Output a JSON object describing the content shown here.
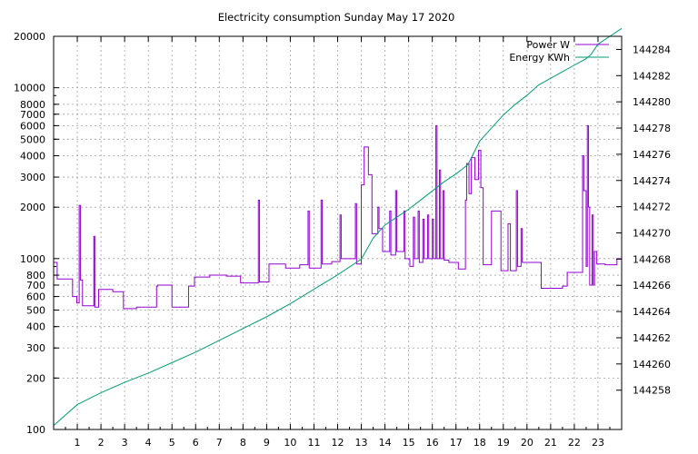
{
  "chart_data": {
    "type": "line",
    "title": "Electricity consumption Sunday May 17 2020",
    "x_ticks": [
      "1",
      "2",
      "3",
      "4",
      "5",
      "6",
      "7",
      "8",
      "9",
      "10",
      "11",
      "12",
      "13",
      "14",
      "15",
      "16",
      "17",
      "18",
      "19",
      "20",
      "21",
      "22",
      "23"
    ],
    "xlim": [
      0,
      24
    ],
    "y_left": {
      "scale": "log",
      "ylim": [
        100,
        20000
      ],
      "ticks": [
        "100",
        "200",
        "300",
        "400",
        "500",
        "600",
        "700",
        "800",
        "1000",
        "2000",
        "3000",
        "4000",
        "5000",
        "6000",
        "7000",
        "8000",
        "10000",
        "20000"
      ]
    },
    "y_right": {
      "ylim": [
        144255,
        144285
      ],
      "ticks": [
        "144258",
        "144260",
        "144262",
        "144264",
        "144266",
        "144268",
        "144270",
        "144272",
        "144274",
        "144276",
        "144278",
        "144280",
        "144282",
        "144284"
      ]
    },
    "grid": true,
    "legend_position": "top-right",
    "series": [
      {
        "name": "Power W",
        "axis": "left",
        "color": "#9400d3",
        "points": [
          [
            0.0,
            950
          ],
          [
            0.15,
            950
          ],
          [
            0.15,
            760
          ],
          [
            0.8,
            760
          ],
          [
            0.8,
            600
          ],
          [
            0.98,
            600
          ],
          [
            0.98,
            550
          ],
          [
            1.08,
            550
          ],
          [
            1.08,
            2050
          ],
          [
            1.13,
            2050
          ],
          [
            1.13,
            750
          ],
          [
            1.22,
            750
          ],
          [
            1.22,
            530
          ],
          [
            1.7,
            530
          ],
          [
            1.7,
            1350
          ],
          [
            1.74,
            1350
          ],
          [
            1.74,
            520
          ],
          [
            1.9,
            520
          ],
          [
            1.9,
            660
          ],
          [
            2.5,
            660
          ],
          [
            2.5,
            640
          ],
          [
            2.95,
            640
          ],
          [
            2.95,
            510
          ],
          [
            3.5,
            510
          ],
          [
            3.5,
            520
          ],
          [
            4.35,
            520
          ],
          [
            4.35,
            690
          ],
          [
            4.4,
            690
          ],
          [
            4.4,
            700
          ],
          [
            5.0,
            700
          ],
          [
            5.0,
            520
          ],
          [
            5.7,
            520
          ],
          [
            5.7,
            690
          ],
          [
            5.95,
            690
          ],
          [
            5.95,
            780
          ],
          [
            6.6,
            780
          ],
          [
            6.6,
            800
          ],
          [
            7.3,
            800
          ],
          [
            7.3,
            790
          ],
          [
            7.9,
            790
          ],
          [
            7.9,
            720
          ],
          [
            8.65,
            720
          ],
          [
            8.65,
            2200
          ],
          [
            8.7,
            2200
          ],
          [
            8.7,
            730
          ],
          [
            9.1,
            730
          ],
          [
            9.1,
            930
          ],
          [
            9.8,
            930
          ],
          [
            9.8,
            880
          ],
          [
            10.4,
            880
          ],
          [
            10.4,
            920
          ],
          [
            10.75,
            920
          ],
          [
            10.75,
            1900
          ],
          [
            10.8,
            1900
          ],
          [
            10.8,
            880
          ],
          [
            11.3,
            880
          ],
          [
            11.3,
            2200
          ],
          [
            11.35,
            2200
          ],
          [
            11.35,
            930
          ],
          [
            11.75,
            930
          ],
          [
            11.75,
            960
          ],
          [
            12.1,
            960
          ],
          [
            12.1,
            1800
          ],
          [
            12.15,
            1800
          ],
          [
            12.15,
            1000
          ],
          [
            12.75,
            1000
          ],
          [
            12.75,
            2100
          ],
          [
            12.8,
            2100
          ],
          [
            12.8,
            930
          ],
          [
            13.0,
            930
          ],
          [
            13.0,
            2700
          ],
          [
            13.12,
            2700
          ],
          [
            13.12,
            4500
          ],
          [
            13.3,
            4500
          ],
          [
            13.3,
            3100
          ],
          [
            13.45,
            3100
          ],
          [
            13.45,
            1400
          ],
          [
            13.7,
            1400
          ],
          [
            13.7,
            2000
          ],
          [
            13.75,
            2000
          ],
          [
            13.75,
            1500
          ],
          [
            13.9,
            1500
          ],
          [
            13.9,
            1100
          ],
          [
            14.2,
            1100
          ],
          [
            14.2,
            1900
          ],
          [
            14.25,
            1900
          ],
          [
            14.25,
            1050
          ],
          [
            14.45,
            1050
          ],
          [
            14.45,
            2500
          ],
          [
            14.5,
            2500
          ],
          [
            14.5,
            1100
          ],
          [
            14.8,
            1100
          ],
          [
            14.8,
            1900
          ],
          [
            14.85,
            1900
          ],
          [
            14.85,
            1000
          ],
          [
            15.05,
            1000
          ],
          [
            15.05,
            900
          ],
          [
            15.2,
            900
          ],
          [
            15.2,
            1750
          ],
          [
            15.25,
            1750
          ],
          [
            15.25,
            1000
          ],
          [
            15.4,
            1000
          ],
          [
            15.4,
            1900
          ],
          [
            15.45,
            1900
          ],
          [
            15.45,
            950
          ],
          [
            15.6,
            950
          ],
          [
            15.6,
            1700
          ],
          [
            15.65,
            1700
          ],
          [
            15.65,
            1000
          ],
          [
            15.8,
            1000
          ],
          [
            15.8,
            1800
          ],
          [
            15.85,
            1800
          ],
          [
            15.85,
            1000
          ],
          [
            16.0,
            1000
          ],
          [
            16.0,
            1700
          ],
          [
            16.05,
            1700
          ],
          [
            16.05,
            1000
          ],
          [
            16.15,
            1000
          ],
          [
            16.15,
            6000
          ],
          [
            16.2,
            6000
          ],
          [
            16.2,
            1000
          ],
          [
            16.3,
            1000
          ],
          [
            16.3,
            3300
          ],
          [
            16.35,
            3300
          ],
          [
            16.35,
            1000
          ],
          [
            16.45,
            1000
          ],
          [
            16.45,
            2500
          ],
          [
            16.5,
            2500
          ],
          [
            16.5,
            980
          ],
          [
            16.7,
            980
          ],
          [
            16.7,
            950
          ],
          [
            17.1,
            950
          ],
          [
            17.1,
            870
          ],
          [
            17.4,
            870
          ],
          [
            17.4,
            2200
          ],
          [
            17.45,
            2200
          ],
          [
            17.45,
            3600
          ],
          [
            17.55,
            3600
          ],
          [
            17.55,
            2400
          ],
          [
            17.65,
            2400
          ],
          [
            17.65,
            3900
          ],
          [
            17.8,
            3900
          ],
          [
            17.8,
            2900
          ],
          [
            17.95,
            2900
          ],
          [
            17.95,
            4300
          ],
          [
            18.05,
            4300
          ],
          [
            18.05,
            2600
          ],
          [
            18.15,
            2600
          ],
          [
            18.15,
            920
          ],
          [
            18.5,
            920
          ],
          [
            18.5,
            1900
          ],
          [
            18.9,
            1900
          ],
          [
            18.9,
            850
          ],
          [
            19.2,
            850
          ],
          [
            19.2,
            1600
          ],
          [
            19.3,
            1600
          ],
          [
            19.3,
            850
          ],
          [
            19.55,
            850
          ],
          [
            19.55,
            2500
          ],
          [
            19.6,
            2500
          ],
          [
            19.6,
            900
          ],
          [
            19.75,
            900
          ],
          [
            19.75,
            1500
          ],
          [
            19.8,
            1500
          ],
          [
            19.8,
            950
          ],
          [
            20.6,
            950
          ],
          [
            20.6,
            670
          ],
          [
            21.5,
            670
          ],
          [
            21.5,
            690
          ],
          [
            21.7,
            690
          ],
          [
            21.7,
            830
          ],
          [
            22.35,
            830
          ],
          [
            22.35,
            4000
          ],
          [
            22.4,
            4000
          ],
          [
            22.4,
            2500
          ],
          [
            22.5,
            2500
          ],
          [
            22.5,
            900
          ],
          [
            22.55,
            900
          ],
          [
            22.55,
            6000
          ],
          [
            22.6,
            6000
          ],
          [
            22.6,
            2000
          ],
          [
            22.65,
            2000
          ],
          [
            22.65,
            700
          ],
          [
            22.75,
            700
          ],
          [
            22.75,
            1800
          ],
          [
            22.8,
            1800
          ],
          [
            22.8,
            700
          ],
          [
            22.85,
            700
          ],
          [
            22.85,
            1100
          ],
          [
            22.95,
            1100
          ],
          [
            22.95,
            930
          ],
          [
            23.3,
            930
          ],
          [
            23.3,
            920
          ],
          [
            23.8,
            920
          ],
          [
            23.8,
            1000
          ],
          [
            24.0,
            1000
          ]
        ]
      },
      {
        "name": "Energy KWh",
        "axis": "right",
        "color": "#009e73",
        "points": [
          [
            0.0,
            144255.3
          ],
          [
            1.0,
            144256.9
          ],
          [
            2.0,
            144257.8
          ],
          [
            3.0,
            144258.6
          ],
          [
            4.0,
            144259.3
          ],
          [
            5.0,
            144260.1
          ],
          [
            6.0,
            144260.9
          ],
          [
            7.0,
            144261.8
          ],
          [
            8.0,
            144262.7
          ],
          [
            9.0,
            144263.6
          ],
          [
            10.0,
            144264.6
          ],
          [
            11.0,
            144265.7
          ],
          [
            12.0,
            144266.8
          ],
          [
            13.0,
            144268.0
          ],
          [
            13.5,
            144269.6
          ],
          [
            14.0,
            144270.6
          ],
          [
            14.5,
            144271.2
          ],
          [
            15.0,
            144271.8
          ],
          [
            15.5,
            144272.5
          ],
          [
            16.0,
            144273.2
          ],
          [
            16.5,
            144273.9
          ],
          [
            17.0,
            144274.5
          ],
          [
            17.5,
            144275.2
          ],
          [
            18.0,
            144277.0
          ],
          [
            18.5,
            144278.0
          ],
          [
            19.0,
            144279.0
          ],
          [
            19.5,
            144279.8
          ],
          [
            20.0,
            144280.5
          ],
          [
            20.5,
            144281.3
          ],
          [
            21.0,
            144281.8
          ],
          [
            21.5,
            144282.3
          ],
          [
            22.0,
            144282.8
          ],
          [
            22.5,
            144283.3
          ],
          [
            22.7,
            144283.6
          ],
          [
            23.0,
            144284.4
          ],
          [
            23.5,
            144285.0
          ],
          [
            24.0,
            144285.6
          ]
        ]
      }
    ]
  }
}
